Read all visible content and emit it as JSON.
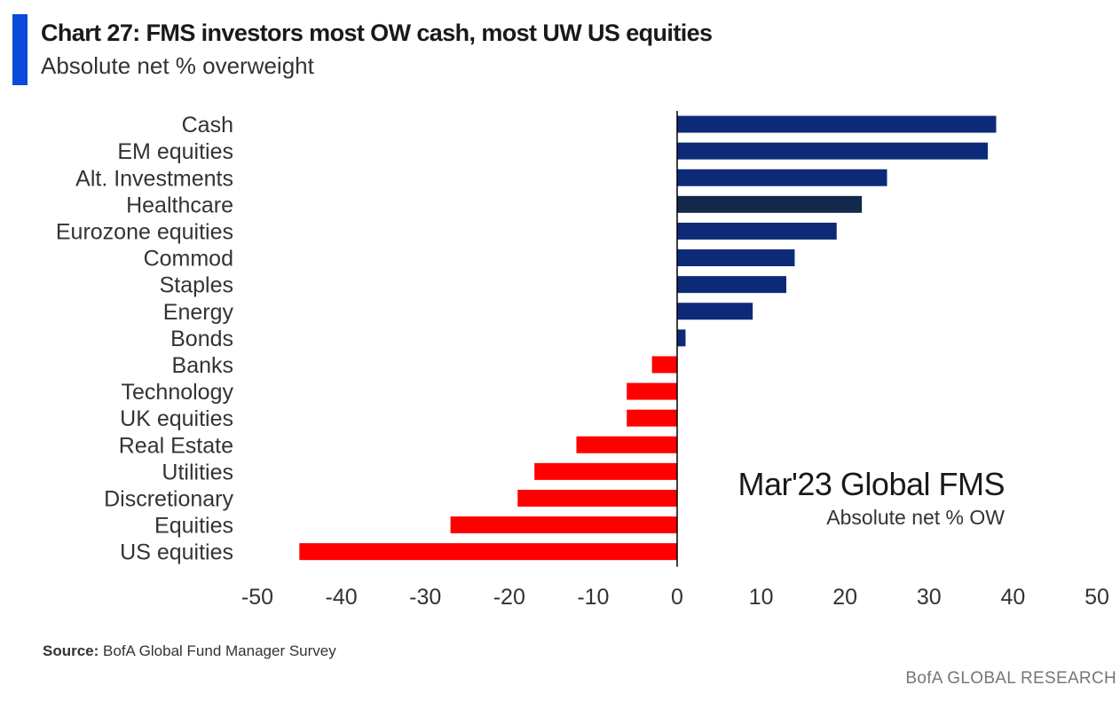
{
  "header": {
    "title": "Chart 27: FMS investors most OW cash, most UW US equities",
    "subtitle": "Absolute net % overweight"
  },
  "annotation": {
    "main": "Mar'23 Global FMS",
    "sub": "Absolute net % OW"
  },
  "footer": {
    "source_label": "Source:",
    "source_text": "BofA Global Fund Manager Survey",
    "brand": "BofA GLOBAL RESEARCH"
  },
  "colors": {
    "positive": "#0d2a78",
    "highlight": "#13294b",
    "negative": "#ff0000",
    "accent": "#0a4bdc",
    "axis": "#000000"
  },
  "chart_data": {
    "type": "bar",
    "orientation": "horizontal",
    "title": "Chart 27: FMS investors most OW cash, most UW US equities",
    "subtitle": "Absolute net % overweight",
    "categories": [
      "Cash",
      "EM equities",
      "Alt. Investments",
      "Healthcare",
      "Eurozone equities",
      "Commod",
      "Staples",
      "Energy",
      "Bonds",
      "Banks",
      "Technology",
      "UK equities",
      "Real Estate",
      "Utilities",
      "Discretionary",
      "Equities",
      "US equities"
    ],
    "values": [
      38,
      37,
      25,
      22,
      19,
      14,
      13,
      9,
      1,
      -3,
      -6,
      -6,
      -12,
      -17,
      -19,
      -27,
      -45
    ],
    "highlight_category": "Healthcare",
    "xlim": [
      -50,
      50
    ],
    "xticks": [
      -50,
      -40,
      -30,
      -20,
      -10,
      0,
      10,
      20,
      30,
      40,
      50
    ],
    "xlabel": "",
    "ylabel": "",
    "grid": false,
    "legend": "none"
  }
}
